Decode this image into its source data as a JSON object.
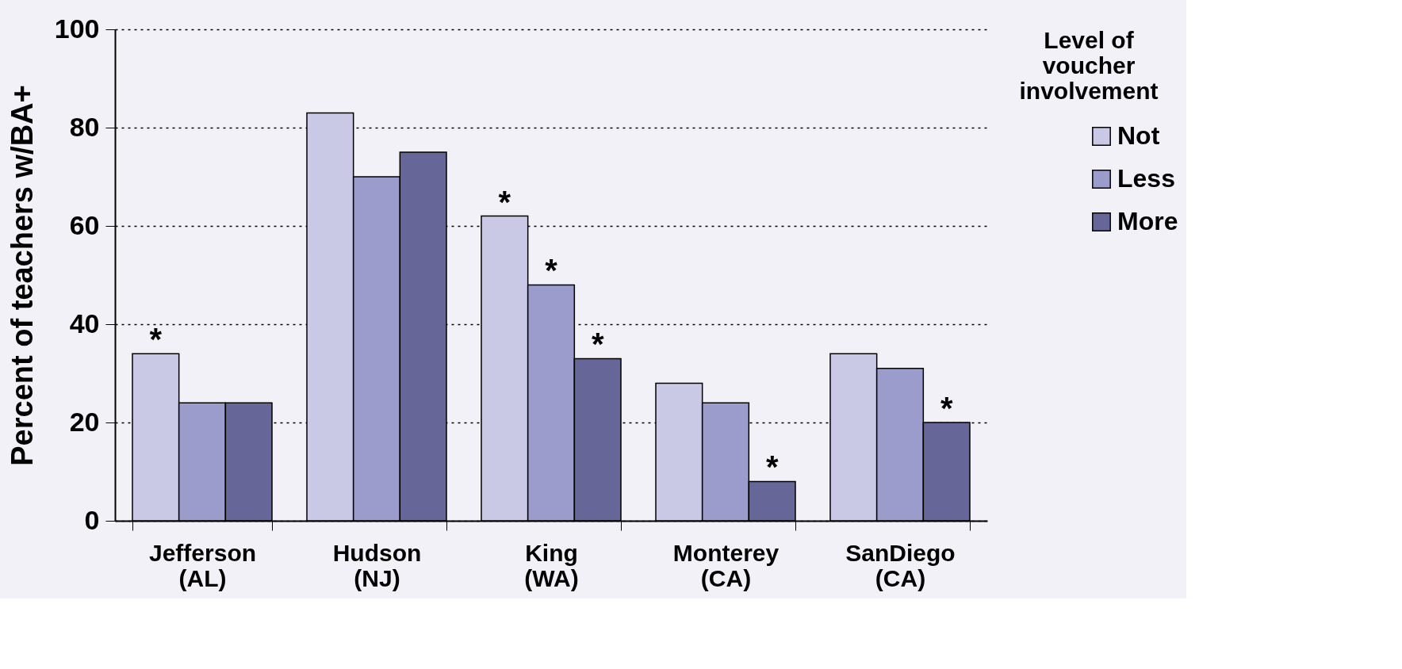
{
  "chart_data": {
    "type": "bar",
    "ylabel": "Percent of teachers w/BA+",
    "legend_title": "Level of\nvoucher\ninvolvement",
    "categories": [
      "Jefferson\n(AL)",
      "Hudson\n(NJ)",
      "King\n(WA)",
      "Monterey\n(CA)",
      "SanDiego\n(CA)"
    ],
    "series": [
      {
        "name": "Not",
        "color": "#c9c9e6",
        "values": [
          34,
          83,
          62,
          28,
          34
        ],
        "value_labels": [
          "*",
          null,
          "*",
          null,
          null
        ]
      },
      {
        "name": "Less",
        "color": "#9b9bcc",
        "values": [
          24,
          70,
          48,
          24,
          31
        ],
        "value_labels": [
          null,
          null,
          "*",
          null,
          null
        ]
      },
      {
        "name": "More",
        "color": "#666699",
        "values": [
          24,
          75,
          33,
          8,
          20
        ],
        "value_labels": [
          null,
          null,
          "*",
          "*",
          "*"
        ]
      }
    ],
    "ylim": [
      0,
      100
    ],
    "yticks": [
      0,
      20,
      40,
      60,
      80,
      100
    ],
    "grid": "y",
    "legend": "right"
  }
}
